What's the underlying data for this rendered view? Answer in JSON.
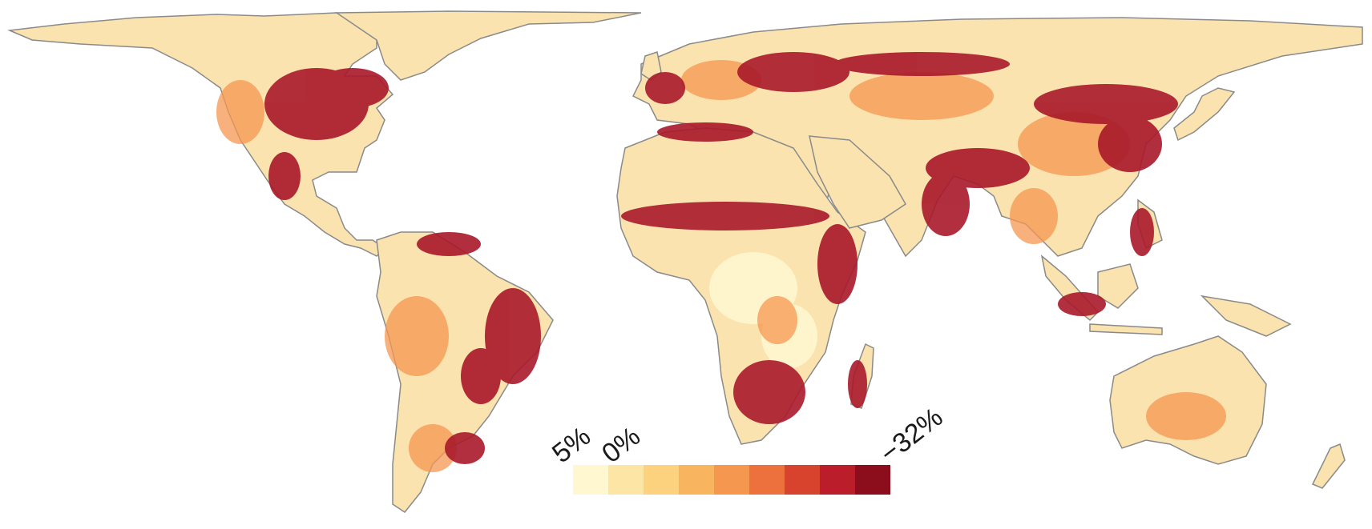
{
  "legend": {
    "labels": {
      "left": "5%",
      "middle": "0%",
      "right": "−32%"
    },
    "colors": [
      "#fff7cf",
      "#fde5a5",
      "#fcd27f",
      "#f9b45f",
      "#f69750",
      "#ec713c",
      "#d8432d",
      "#bb1e2a",
      "#8c0d1c"
    ]
  },
  "map": {
    "ocean_color": "#ffffff",
    "coastline_color": "#8a8a8a",
    "base_land_color": "#fae3ae"
  }
}
